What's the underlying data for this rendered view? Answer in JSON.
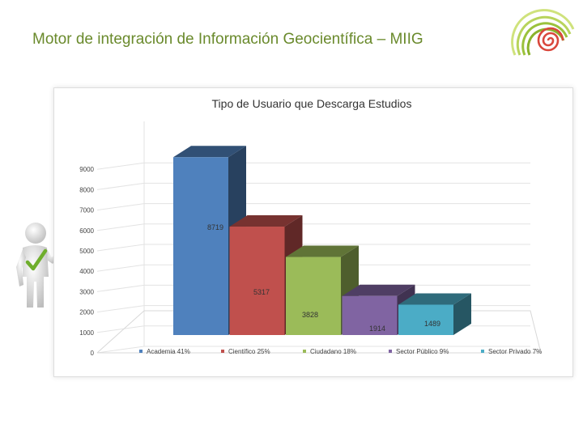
{
  "slide": {
    "title": "Motor de integración de Información Geocientífica – MIIG"
  },
  "colors": {
    "title": "#6a8a2c",
    "logo_spiral": "#d9473c",
    "logo_arcs": [
      "#9bc23c",
      "#b8d45c",
      "#cfe27c"
    ]
  },
  "icons": {
    "logo": "spiral-logo-icon",
    "figure": "person-checkmark-icon"
  },
  "chart_data": {
    "type": "bar",
    "title": "Tipo de Usuario que Descarga Estudios",
    "ylim": [
      0,
      10000
    ],
    "yticks": [
      "0",
      "1000",
      "2000",
      "3000",
      "4000",
      "5000",
      "6000",
      "7000",
      "8000",
      "9000"
    ],
    "grid": true,
    "legend_placement": "bottom",
    "categories": [
      "Academia 41%",
      "Científico 25%",
      "Ciudadano 18%",
      "Sector Público 9%",
      "Sector Privado 7%"
    ],
    "values": [
      8719,
      5317,
      3828,
      1914,
      1489
    ],
    "data_labels": [
      "8719",
      "5317",
      "3828",
      "1914",
      "1489"
    ],
    "colors": [
      "#4f81bd",
      "#c0504d",
      "#9bbb59",
      "#8064a2",
      "#4bacc6"
    ]
  }
}
